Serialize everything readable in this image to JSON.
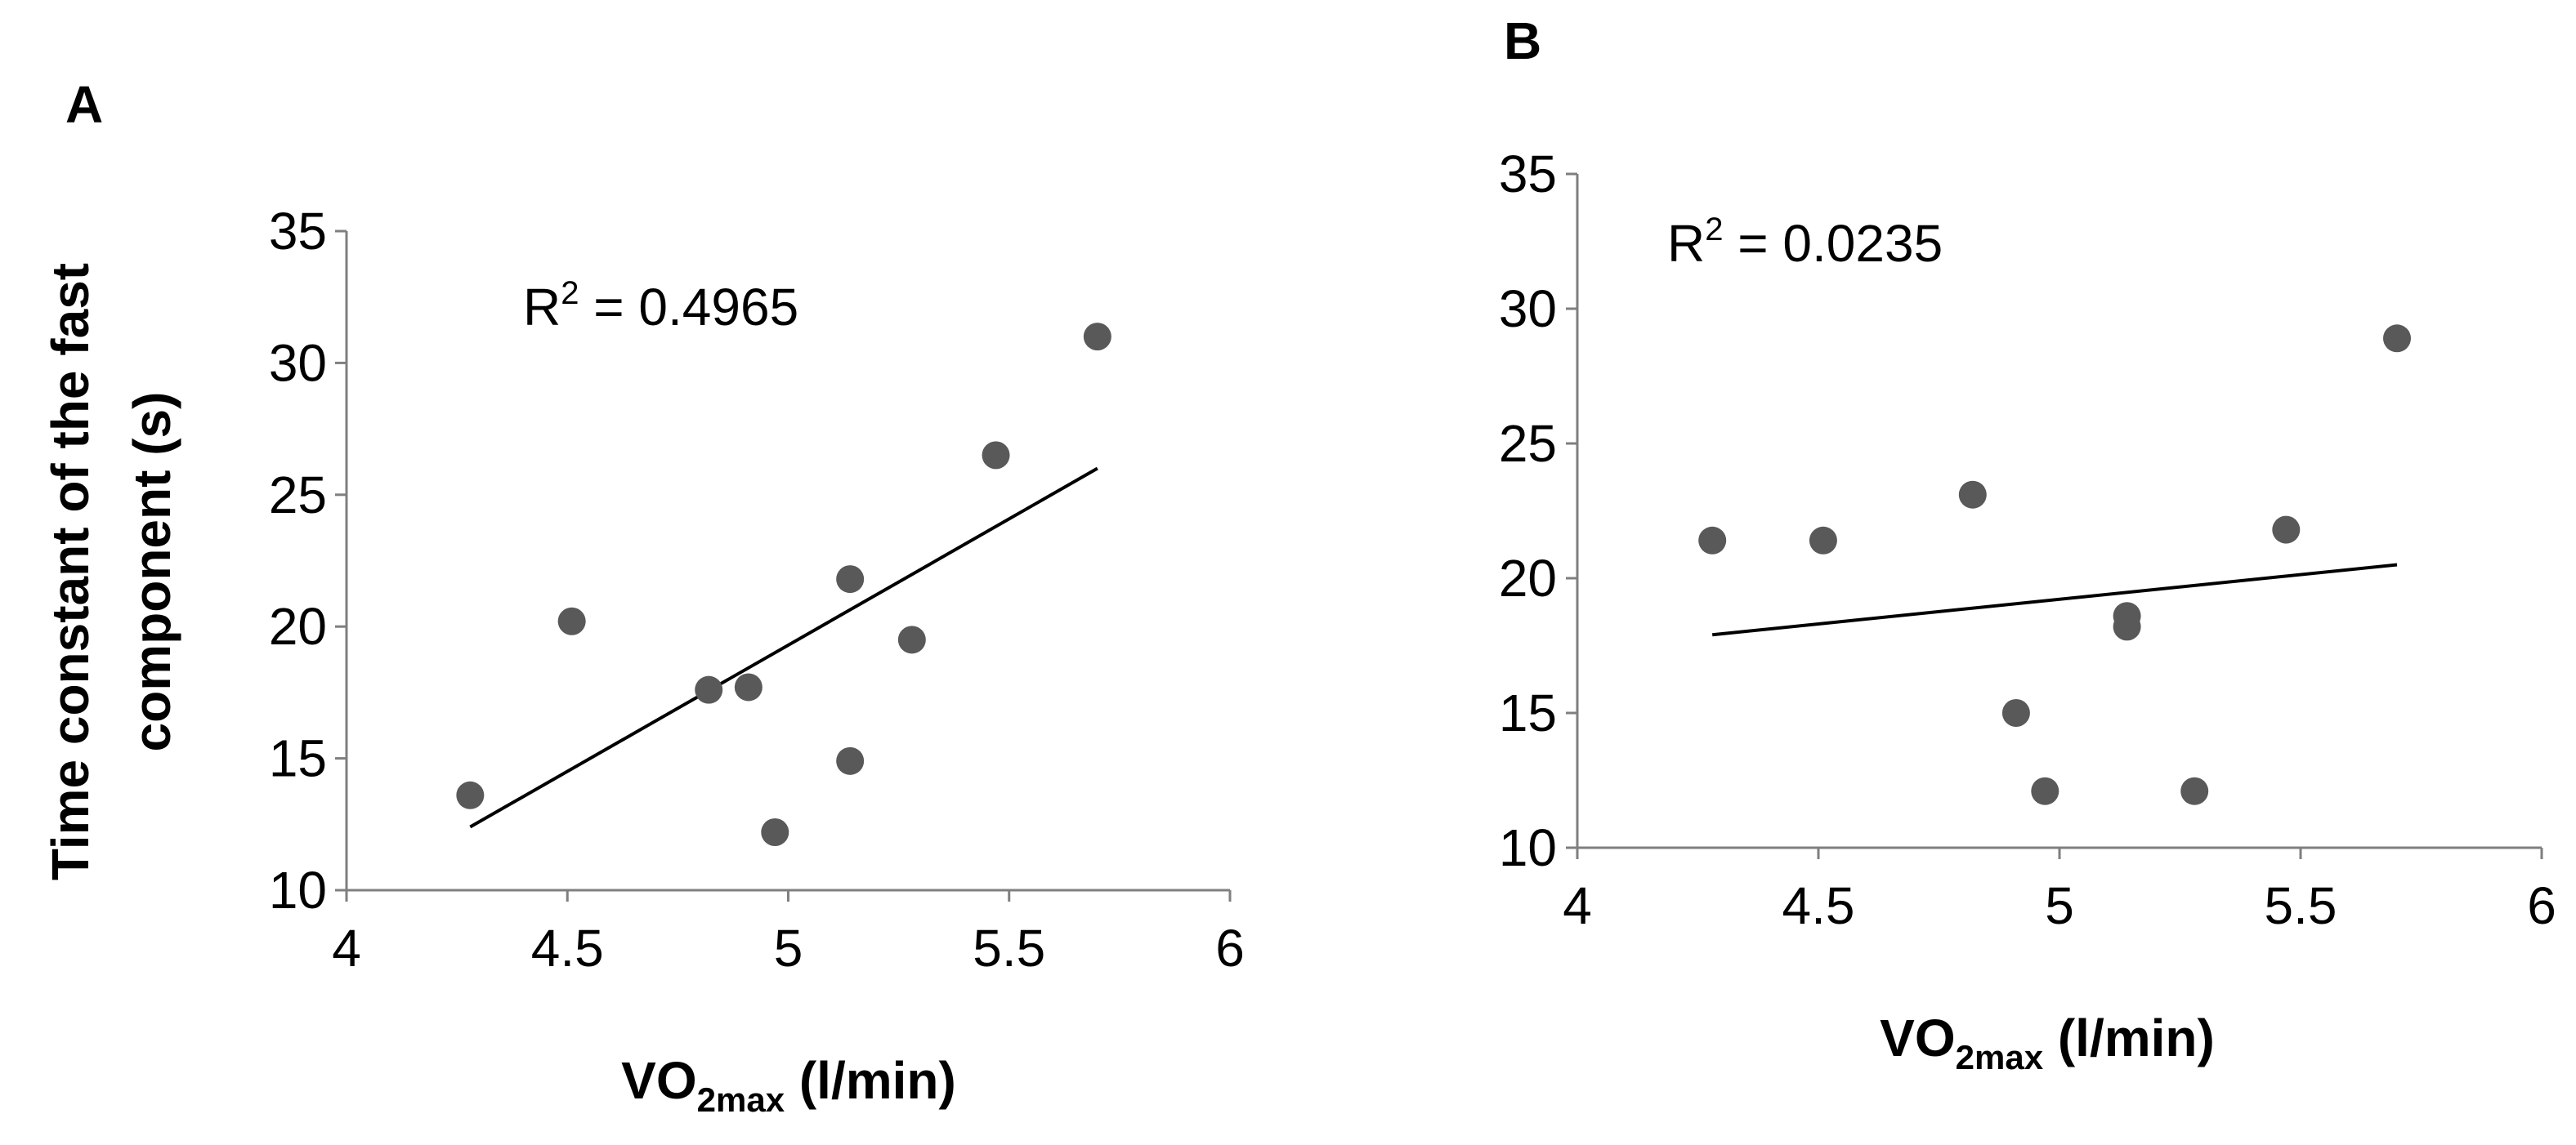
{
  "chart_data": [
    {
      "type": "scatter",
      "panel_label": "A",
      "xlabel_main": "VO",
      "xlabel_sub": "2max",
      "xlabel_unit": " (l/min)",
      "ylabel_line1": "Time constant of the fast",
      "ylabel_line2": "component (s)",
      "xlim": [
        4,
        6
      ],
      "ylim": [
        10,
        35
      ],
      "xticks": [
        4,
        4.5,
        5,
        5.5,
        6
      ],
      "yticks": [
        10,
        15,
        20,
        25,
        30,
        35
      ],
      "xtick_labels": [
        "4",
        "4.5",
        "5",
        "5.5",
        "6"
      ],
      "ytick_labels": [
        "10",
        "15",
        "20",
        "25",
        "30",
        "35"
      ],
      "r2_prefix": "R",
      "r2_sup": "2",
      "r2_value": " = 0.4965",
      "points": [
        {
          "x": 4.28,
          "y": 13.6
        },
        {
          "x": 4.51,
          "y": 20.2
        },
        {
          "x": 4.82,
          "y": 17.6
        },
        {
          "x": 4.91,
          "y": 17.7
        },
        {
          "x": 4.97,
          "y": 12.2
        },
        {
          "x": 5.14,
          "y": 21.8
        },
        {
          "x": 5.14,
          "y": 14.9
        },
        {
          "x": 5.28,
          "y": 19.5
        },
        {
          "x": 5.47,
          "y": 26.5
        },
        {
          "x": 5.7,
          "y": 31.0
        }
      ],
      "trendline": {
        "x1": 4.28,
        "y1": 12.4,
        "x2": 5.7,
        "y2": 26.0
      }
    },
    {
      "type": "scatter",
      "panel_label": "B",
      "xlabel_main": "VO",
      "xlabel_sub": "2max",
      "xlabel_unit": " (l/min)",
      "xlim": [
        4,
        6
      ],
      "ylim": [
        10,
        35
      ],
      "xticks": [
        4,
        4.5,
        5,
        5.5,
        6
      ],
      "yticks": [
        10,
        15,
        20,
        25,
        30,
        35
      ],
      "xtick_labels": [
        "4",
        "4.5",
        "5",
        "5.5",
        "6"
      ],
      "ytick_labels": [
        "10",
        "15",
        "20",
        "25",
        "30",
        "35"
      ],
      "r2_prefix": "R",
      "r2_sup": "2",
      "r2_value": " = 0.0235",
      "points": [
        {
          "x": 4.28,
          "y": 21.4
        },
        {
          "x": 4.51,
          "y": 21.4
        },
        {
          "x": 4.82,
          "y": 23.1
        },
        {
          "x": 4.91,
          "y": 15.0
        },
        {
          "x": 4.97,
          "y": 12.1
        },
        {
          "x": 5.14,
          "y": 18.6
        },
        {
          "x": 5.14,
          "y": 18.2
        },
        {
          "x": 5.28,
          "y": 12.1
        },
        {
          "x": 5.47,
          "y": 21.8
        },
        {
          "x": 5.7,
          "y": 28.9
        }
      ],
      "trendline": {
        "x1": 4.28,
        "y1": 17.9,
        "x2": 5.7,
        "y2": 20.5
      }
    }
  ]
}
